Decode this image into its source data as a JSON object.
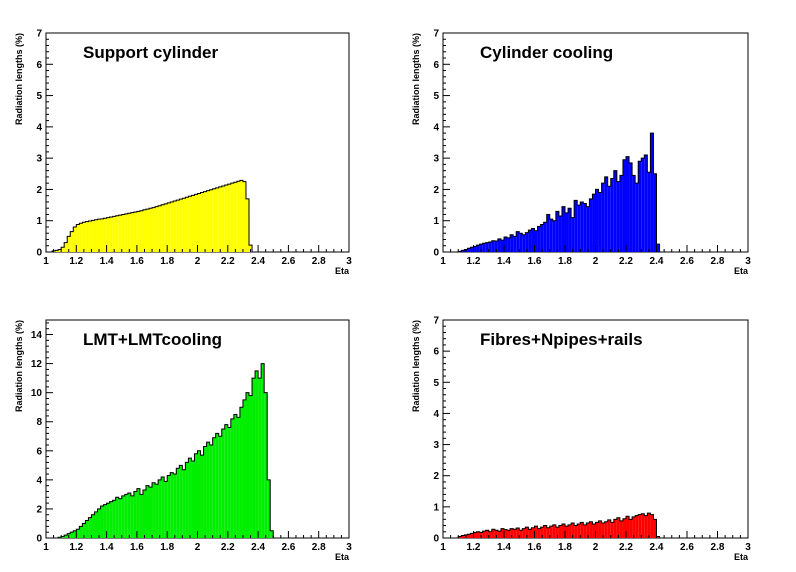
{
  "chart_data": [
    {
      "type": "bar",
      "title": "Support cylinder",
      "xlabel": "Eta",
      "ylabel": "Radiation lengths (%)",
      "xlim": [
        1,
        3
      ],
      "ylim": [
        0,
        7
      ],
      "xticks": [
        "1",
        "1.2",
        "1.4",
        "1.6",
        "1.8",
        "2",
        "2.2",
        "2.4",
        "2.6",
        "2.8",
        "3"
      ],
      "yticks": [
        "0",
        "1",
        "2",
        "3",
        "4",
        "5",
        "6",
        "7"
      ],
      "color": "#ffff00",
      "bin_start": 1.0,
      "bin_width": 0.02,
      "values": [
        0.0,
        0.0,
        0.03,
        0.05,
        0.08,
        0.15,
        0.3,
        0.5,
        0.65,
        0.8,
        0.88,
        0.92,
        0.95,
        0.97,
        0.99,
        1.01,
        1.03,
        1.05,
        1.06,
        1.08,
        1.1,
        1.12,
        1.14,
        1.16,
        1.18,
        1.2,
        1.22,
        1.24,
        1.26,
        1.28,
        1.3,
        1.32,
        1.35,
        1.37,
        1.4,
        1.42,
        1.45,
        1.48,
        1.51,
        1.54,
        1.57,
        1.6,
        1.63,
        1.66,
        1.69,
        1.72,
        1.75,
        1.78,
        1.81,
        1.84,
        1.87,
        1.9,
        1.93,
        1.96,
        1.99,
        2.02,
        2.05,
        2.08,
        2.11,
        2.14,
        2.17,
        2.2,
        2.23,
        2.26,
        2.29,
        2.25,
        1.7,
        0.22,
        0.0,
        0.0,
        0.0,
        0.0,
        0.0,
        0.0,
        0.0,
        0.0,
        0.0,
        0.0,
        0.0,
        0.0,
        0.0,
        0.0,
        0.0,
        0.0,
        0.0,
        0.0,
        0.0,
        0.0,
        0.0,
        0.0,
        0.0,
        0.0,
        0.0,
        0.0,
        0.0,
        0.0,
        0.0,
        0.0,
        0.0,
        0.0
      ]
    },
    {
      "type": "bar",
      "title": "Cylinder cooling",
      "xlabel": "Eta",
      "ylabel": "Radiation lengths (%)",
      "xlim": [
        1,
        3
      ],
      "ylim": [
        0,
        7
      ],
      "xticks": [
        "1",
        "1.2",
        "1.4",
        "1.6",
        "1.8",
        "2",
        "2.2",
        "2.4",
        "2.6",
        "2.8",
        "3"
      ],
      "yticks": [
        "0",
        "1",
        "2",
        "3",
        "4",
        "5",
        "6",
        "7"
      ],
      "color": "#0000ff",
      "bin_start": 1.0,
      "bin_width": 0.02,
      "values": [
        0.0,
        0.0,
        0.0,
        0.0,
        0.0,
        0.02,
        0.05,
        0.08,
        0.12,
        0.15,
        0.18,
        0.22,
        0.25,
        0.28,
        0.3,
        0.32,
        0.36,
        0.35,
        0.42,
        0.38,
        0.48,
        0.45,
        0.55,
        0.5,
        0.65,
        0.6,
        0.55,
        0.62,
        0.7,
        0.75,
        0.68,
        0.82,
        0.88,
        0.95,
        1.2,
        1.05,
        1.0,
        1.3,
        1.15,
        1.45,
        1.25,
        1.4,
        1.1,
        1.65,
        1.5,
        1.6,
        1.55,
        1.45,
        1.7,
        1.85,
        2.0,
        1.9,
        2.2,
        2.4,
        2.1,
        2.35,
        2.6,
        2.25,
        2.45,
        2.95,
        3.05,
        2.85,
        2.45,
        2.2,
        2.9,
        3.0,
        3.1,
        2.55,
        3.8,
        2.5,
        0.25,
        0.0,
        0.0,
        0.0,
        0.0,
        0.0,
        0.0,
        0.0,
        0.0,
        0.0,
        0.0,
        0.0,
        0.0,
        0.0,
        0.0,
        0.0,
        0.0,
        0.0,
        0.0,
        0.0,
        0.0,
        0.0,
        0.0,
        0.0,
        0.0,
        0.0,
        0.0,
        0.0,
        0.0,
        0.0
      ]
    },
    {
      "type": "bar",
      "title": "LMT+LMTcooling",
      "xlabel": "Eta",
      "ylabel": "Radiation lengths (%)",
      "xlim": [
        1,
        3
      ],
      "ylim": [
        0,
        15
      ],
      "xticks": [
        "1",
        "1.2",
        "1.4",
        "1.6",
        "1.8",
        "2",
        "2.2",
        "2.4",
        "2.6",
        "2.8",
        "3"
      ],
      "yticks": [
        "0",
        "2",
        "4",
        "6",
        "8",
        "10",
        "12",
        "14"
      ],
      "color": "#00ee00",
      "bin_start": 1.0,
      "bin_width": 0.02,
      "values": [
        0.0,
        0.0,
        0.0,
        0.0,
        0.05,
        0.1,
        0.2,
        0.3,
        0.4,
        0.5,
        0.6,
        0.8,
        1.0,
        1.2,
        1.4,
        1.6,
        1.8,
        2.0,
        2.2,
        2.3,
        2.4,
        2.5,
        2.6,
        2.8,
        2.7,
        2.9,
        3.0,
        3.1,
        2.9,
        3.2,
        3.4,
        3.0,
        3.3,
        3.6,
        3.5,
        3.8,
        3.7,
        4.0,
        4.2,
        3.9,
        4.3,
        4.5,
        4.4,
        4.8,
        5.0,
        4.7,
        5.2,
        5.5,
        5.3,
        5.8,
        6.0,
        5.7,
        6.3,
        6.6,
        6.4,
        6.9,
        7.2,
        7.0,
        7.5,
        7.8,
        7.6,
        8.2,
        8.5,
        8.3,
        9.0,
        9.5,
        10.0,
        9.8,
        11.0,
        11.5,
        11.0,
        12.0,
        10.0,
        4.0,
        0.5,
        0.0,
        0.0,
        0.0,
        0.0,
        0.0,
        0.0,
        0.0,
        0.0,
        0.0,
        0.0,
        0.0,
        0.0,
        0.0,
        0.0,
        0.0,
        0.0,
        0.0,
        0.0,
        0.0,
        0.0,
        0.0,
        0.0,
        0.0,
        0.0,
        0.0
      ]
    },
    {
      "type": "bar",
      "title": "Fibres+Npipes+rails",
      "xlabel": "Eta",
      "ylabel": "Radiation lengths (%)",
      "xlim": [
        1,
        3
      ],
      "ylim": [
        0,
        7
      ],
      "xticks": [
        "1",
        "1.2",
        "1.4",
        "1.6",
        "1.8",
        "2",
        "2.2",
        "2.4",
        "2.6",
        "2.8",
        "3"
      ],
      "yticks": [
        "0",
        "1",
        "2",
        "3",
        "4",
        "5",
        "6",
        "7"
      ],
      "color": "#ff0000",
      "bin_start": 1.0,
      "bin_width": 0.02,
      "values": [
        0.0,
        0.0,
        0.0,
        0.0,
        0.0,
        0.05,
        0.08,
        0.1,
        0.12,
        0.15,
        0.18,
        0.2,
        0.18,
        0.22,
        0.25,
        0.2,
        0.28,
        0.25,
        0.22,
        0.3,
        0.27,
        0.25,
        0.3,
        0.28,
        0.32,
        0.25,
        0.3,
        0.35,
        0.28,
        0.33,
        0.38,
        0.3,
        0.35,
        0.4,
        0.33,
        0.38,
        0.42,
        0.35,
        0.4,
        0.45,
        0.38,
        0.42,
        0.48,
        0.4,
        0.45,
        0.5,
        0.42,
        0.48,
        0.52,
        0.45,
        0.5,
        0.55,
        0.48,
        0.52,
        0.58,
        0.5,
        0.6,
        0.65,
        0.55,
        0.62,
        0.7,
        0.6,
        0.68,
        0.72,
        0.75,
        0.78,
        0.72,
        0.8,
        0.75,
        0.6,
        0.05,
        0.0,
        0.0,
        0.0,
        0.0,
        0.0,
        0.0,
        0.0,
        0.0,
        0.0,
        0.0,
        0.0,
        0.0,
        0.0,
        0.0,
        0.0,
        0.0,
        0.0,
        0.0,
        0.0,
        0.0,
        0.0,
        0.0,
        0.0,
        0.0,
        0.0,
        0.0,
        0.0,
        0.0,
        0.0
      ]
    }
  ]
}
